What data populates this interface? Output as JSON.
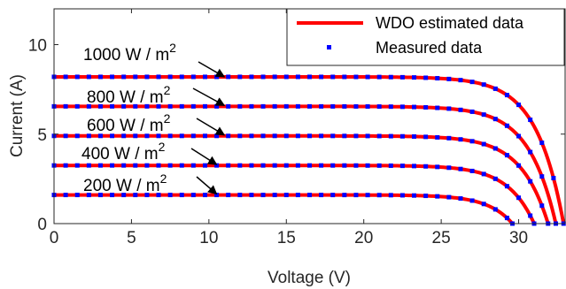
{
  "chart_data": {
    "type": "line",
    "title": "",
    "xlabel": "Voltage (V)",
    "ylabel": "Current (A)",
    "xlim": [
      0,
      33
    ],
    "ylim": [
      0,
      12
    ],
    "xticks": [
      "0",
      "5",
      "10",
      "15",
      "20",
      "25",
      "30"
    ],
    "yticks": [
      "0",
      "5",
      "10"
    ],
    "grid": false,
    "legend_position": "top-right",
    "legend": [
      {
        "label": "WDO estimated data",
        "style": "line",
        "color": "#ff0000"
      },
      {
        "label": "Measured data",
        "style": "marker",
        "color": "#0000ff"
      }
    ],
    "series": [
      {
        "name": "1000 W / m2",
        "annotation": "1000 W / m",
        "superscript": "2",
        "isc": 8.2,
        "voc": 32.9,
        "a": 1.75,
        "arrow_to": [
          11,
          8.1
        ]
      },
      {
        "name": "800 W / m2",
        "annotation": "800 W / m",
        "superscript": "2",
        "isc": 6.55,
        "voc": 32.4,
        "a": 1.75,
        "arrow_to": [
          11,
          6.5
        ]
      },
      {
        "name": "600 W / m2",
        "annotation": "600 W / m",
        "superscript": "2",
        "isc": 4.9,
        "voc": 31.9,
        "a": 1.75,
        "arrow_to": [
          11,
          4.85
        ]
      },
      {
        "name": "400 W / m2",
        "annotation": "400 W / m",
        "superscript": "2",
        "isc": 3.25,
        "voc": 31.0,
        "a": 1.7,
        "arrow_to": [
          10.5,
          3.2
        ]
      },
      {
        "name": "200 W / m2",
        "annotation": "200 W / m",
        "superscript": "2",
        "isc": 1.6,
        "voc": 29.6,
        "a": 1.6,
        "arrow_to": [
          10.5,
          1.55
        ]
      }
    ],
    "measured_step": 0.75,
    "colors": {
      "estimated": "#ff0000",
      "measured": "#0000ff",
      "arrow": "#000000",
      "axis": "#262626"
    }
  }
}
